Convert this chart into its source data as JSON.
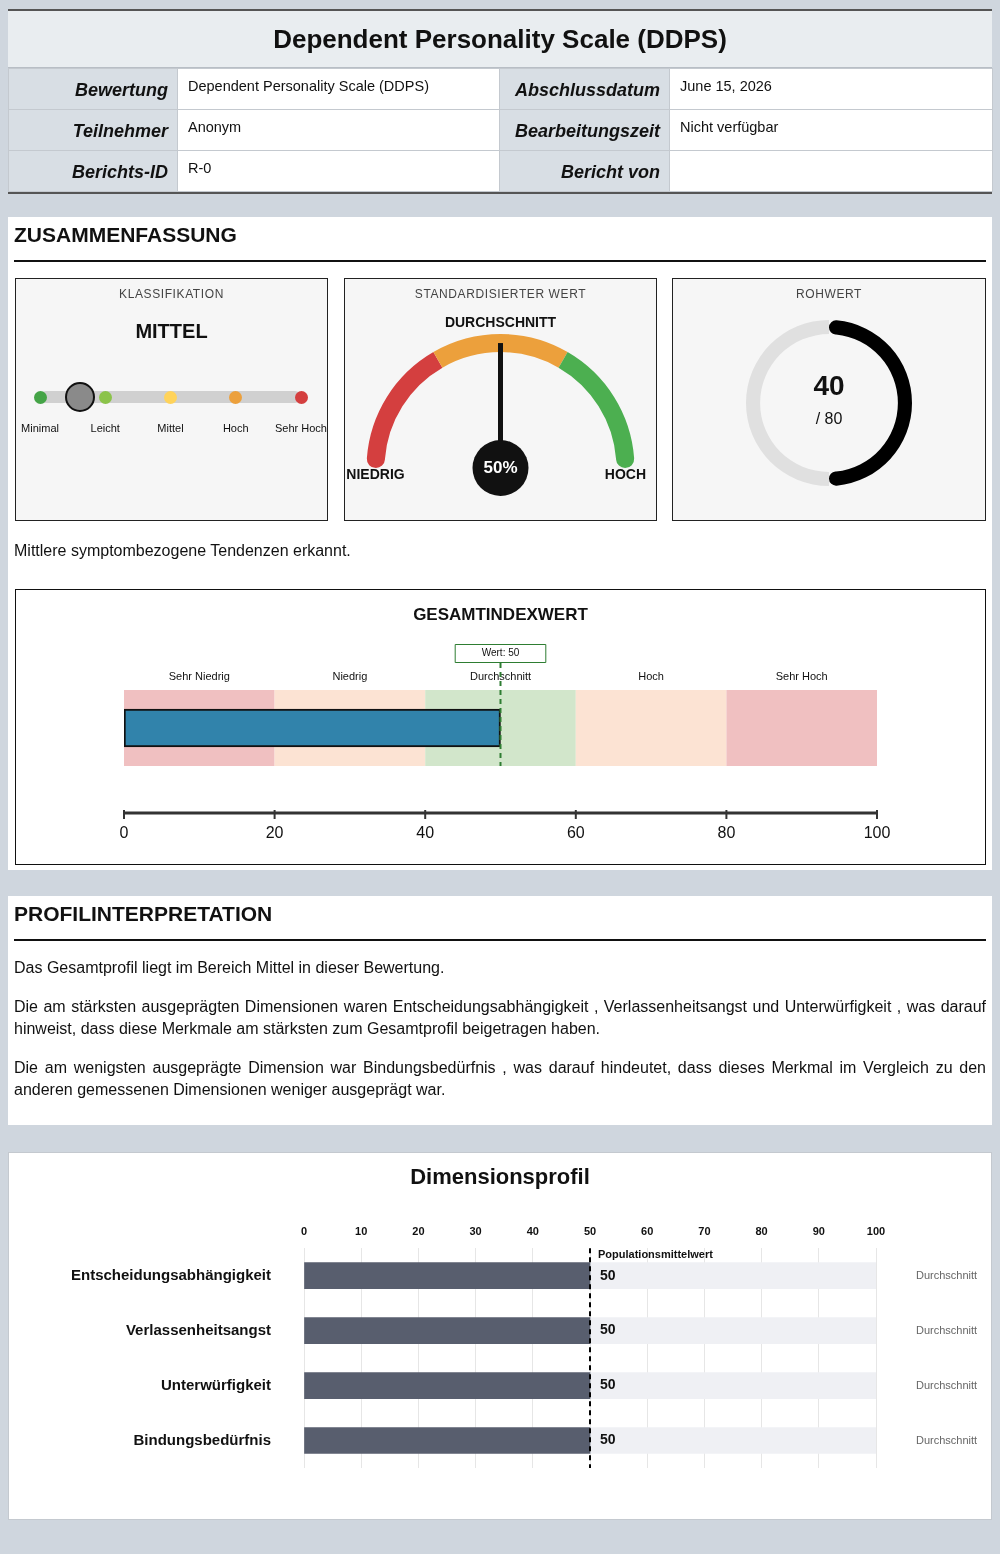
{
  "chart_data": [
    {
      "type": "other",
      "title": "Dependent Personality Scale (DDPS)",
      "annotations": [
        "Bewertung",
        "Dependent Personality Scale (DDPS)",
        "Abschlussdatum",
        "June 15, 2026",
        "Teilnehmer",
        "Anonym",
        "Bearbeitungszeit",
        "Nicht verfügbar",
        "Berichts-ID",
        "R-0",
        "Bericht von"
      ]
    },
    {
      "type": "other",
      "title": "ZUSAMMENFASSUNG"
    },
    {
      "type": "other",
      "title": "KLASSIFIKATION",
      "subtitle": "MITTEL",
      "categories": [
        "Minimal",
        "Leicht",
        "Mittel",
        "Hoch",
        "Sehr Hoch"
      ]
    },
    {
      "type": "donut",
      "title": "STANDARDISIERTER WERT",
      "categories": [
        "NIEDRIG",
        "DURCHSCHNITT",
        "HOCH"
      ],
      "values": [
        33.3,
        33.4,
        33.3
      ],
      "colors": [
        "#d43f3f",
        "#eca03c",
        "#4caf50"
      ],
      "needle": "DURCHSCHNITT",
      "annotations": [
        "50%"
      ]
    },
    {
      "type": "donut",
      "title": "ROHWERT",
      "categories": [
        null,
        null
      ],
      "values": [
        50,
        50
      ],
      "colors": [
        "#000000",
        "#e0e0e0"
      ],
      "annotations": [
        "40",
        "/ 80"
      ]
    },
    {
      "type": "other",
      "annotations": [
        "Mittlere symptombezogene Tendenzen erkannt."
      ]
    },
    {
      "type": "bar",
      "orientation": "horizontal",
      "title": "GESAMTINDEXWERT",
      "categories": [
        null
      ],
      "values": [
        50
      ],
      "color": "#3183ab",
      "xlim": [
        0,
        100
      ],
      "xticks": [
        0,
        20,
        40,
        60,
        80,
        100
      ],
      "tick_labels": "x",
      "bands": [
        {
          "axis": "x",
          "from": 0,
          "to": 20,
          "label": "Sehr Niedrig",
          "color": "#f0c0c1"
        },
        {
          "axis": "x",
          "from": 20,
          "to": 40,
          "label": "Niedrig",
          "color": "#fce3d3"
        },
        {
          "axis": "x",
          "from": 40,
          "to": 60,
          "label": "Durchschnitt",
          "color": "#d2e6cb"
        },
        {
          "axis": "x",
          "from": 60,
          "to": 80,
          "label": "Hoch",
          "color": "#fce3d3"
        },
        {
          "axis": "x",
          "from": 80,
          "to": 100,
          "label": "Sehr Hoch",
          "color": "#f0c0c1"
        }
      ],
      "ref_lines": [
        {
          "axis": "x",
          "value": 50,
          "label": "Wert: 50",
          "color": "#2e7d32",
          "line_style": "dashed"
        }
      ]
    },
    {
      "type": "other",
      "title": "PROFILINTERPRETATION",
      "annotations": [
        "Das Gesamtprofil liegt im Bereich Mittel in dieser Bewertung.",
        "Die am stärksten ausgeprägten Dimensionen waren Entscheidungsabhängigkeit , Verlassenheitsangst und Unterwürfigkeit , was darauf hinweist, dass diese Merkmale am stärksten zum Gesamtprofil beigetragen haben.",
        "Die am wenigsten ausgeprägte Dimension war Bindungsbedürfnis , was darauf hindeutet, dass dieses Merkmal im Vergleich zu den anderen gemessenen Dimensionen weniger ausgeprägt war."
      ]
    },
    {
      "type": "bar",
      "orientation": "horizontal",
      "stacked": true,
      "title": "Dimensionsprofil",
      "categories": [
        "Entscheidungsabhängigkeit",
        "Verlassenheitsangst",
        "Unterwürfigkeit",
        "Bindungsbedürfnis"
      ],
      "series": [
        {
          "color": "#585e6e",
          "values": [
            50,
            50,
            50,
            50
          ],
          "value_labels": [
            "50",
            "50",
            "50",
            "50"
          ]
        },
        {
          "color": "#eff0f4",
          "values": [
            50,
            50,
            50,
            50
          ]
        }
      ],
      "xlim": [
        0,
        100
      ],
      "xticks": [
        0,
        10,
        20,
        30,
        40,
        50,
        60,
        70,
        80,
        90,
        100
      ],
      "grid": "x",
      "ref_lines": [
        {
          "axis": "x",
          "value": 50,
          "label": "Populationsmittelwert",
          "color": "#000000",
          "line_style": "dashed"
        }
      ],
      "annotations": [
        "Durchschnitt",
        "Durchschnitt",
        "Durchschnitt",
        "Durchschnitt"
      ]
    }
  ]
}
